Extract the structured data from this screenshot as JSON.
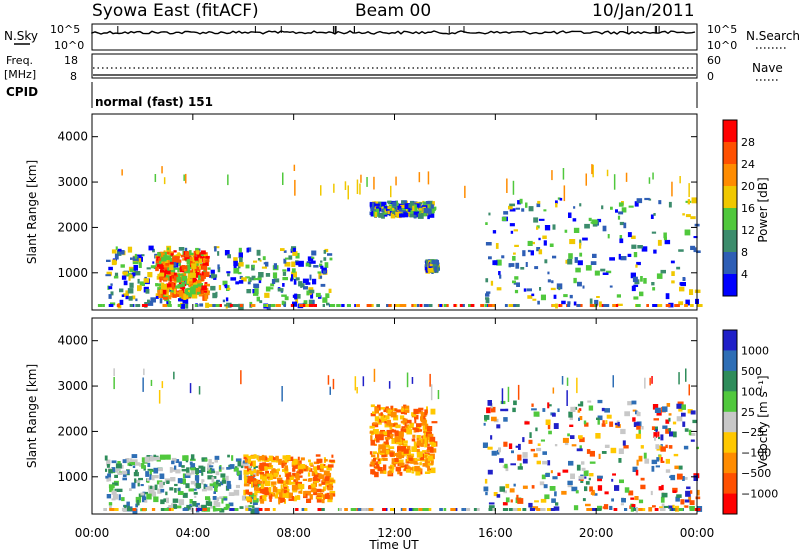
{
  "header": {
    "station": "Syowa East (fitACF)",
    "beam": "Beam 00",
    "date": "10/Jan/2011"
  },
  "noise_panel": {
    "left_label": "N.Sky",
    "right_label": "N.Search",
    "left_ticks": [
      "10^5",
      "10^0"
    ],
    "right_ticks": [
      "10^5",
      "10^0"
    ]
  },
  "freq_panel": {
    "left_label_1": "Freq.",
    "left_label_2": "[MHz]",
    "right_label": "Nave",
    "left_ticks": [
      "18",
      "8"
    ],
    "right_ticks": [
      "60",
      "0"
    ]
  },
  "cpid": {
    "label": "CPID",
    "value": "normal (fast) 151"
  },
  "time_axis": {
    "label": "Time UT",
    "ticks": [
      "00:00",
      "04:00",
      "08:00",
      "12:00",
      "16:00",
      "20:00",
      "00:00"
    ]
  },
  "range_axis": {
    "label": "Slant Range [km]",
    "ticks": [
      "1000",
      "2000",
      "3000",
      "4000"
    ],
    "range_km": [
      180,
      4500
    ]
  },
  "chart_data": [
    {
      "type": "heatmap",
      "title": "",
      "xlabel": "Time UT",
      "ylabel": "Slant Range [km]",
      "xlim": [
        "00:00",
        "24:00"
      ],
      "ylim": [
        180,
        4500
      ],
      "colorbar": {
        "label": "Power [dB]",
        "ticks": [
          "4",
          "8",
          "12",
          "16",
          "20",
          "24",
          "28"
        ],
        "range": [
          0,
          30
        ],
        "colors": [
          "#0000ff",
          "#2e5eb5",
          "#3c8c6c",
          "#50c83c",
          "#f0c800",
          "#ff8c00",
          "#ff5000",
          "#ff0000"
        ]
      },
      "echo_regions": [
        {
          "t_start_h": 0.5,
          "t_end_h": 9.5,
          "range_start_km": 300,
          "range_end_km": 1600,
          "level": "mixed"
        },
        {
          "t_start_h": 2.5,
          "t_end_h": 4.5,
          "range_start_km": 500,
          "range_end_km": 1500,
          "level": "high"
        },
        {
          "t_start_h": 11.0,
          "t_end_h": 13.5,
          "range_start_km": 2300,
          "range_end_km": 2600,
          "level": "low"
        },
        {
          "t_start_h": 13.2,
          "t_end_h": 13.6,
          "range_start_km": 1100,
          "range_end_km": 1300,
          "level": "low"
        },
        {
          "t_start_h": 15.5,
          "t_end_h": 24.0,
          "range_start_km": 300,
          "range_end_km": 2700,
          "level": "low"
        },
        {
          "t_start_h": 0.0,
          "t_end_h": 24.0,
          "range_start_km": 2900,
          "range_end_km": 3400,
          "level": "sparse"
        }
      ]
    },
    {
      "type": "heatmap",
      "title": "",
      "xlabel": "Time UT",
      "ylabel": "Slant Range [km]",
      "xlim": [
        "00:00",
        "24:00"
      ],
      "ylim": [
        180,
        4500
      ],
      "colorbar": {
        "label": "Velocity [m s⁻¹]",
        "ticks": [
          "1000",
          "500",
          "100",
          "25",
          "−25",
          "−100",
          "−500",
          "−1000"
        ],
        "range": [
          -1200,
          1200
        ],
        "colors": [
          "#2020c8",
          "#2e6eb5",
          "#2e8c5a",
          "#50c83c",
          "#c8c8c8",
          "#ffc800",
          "#ff8c00",
          "#ff5000",
          "#ff0000"
        ]
      },
      "echo_regions": [
        {
          "t_start_h": 0.5,
          "t_end_h": 6.5,
          "range_start_km": 300,
          "range_end_km": 1500,
          "level": "towards"
        },
        {
          "t_start_h": 6.0,
          "t_end_h": 9.5,
          "range_start_km": 500,
          "range_end_km": 1500,
          "level": "away"
        },
        {
          "t_start_h": 11.0,
          "t_end_h": 13.5,
          "range_start_km": 1100,
          "range_end_km": 2600,
          "level": "away"
        },
        {
          "t_start_h": 15.5,
          "t_end_h": 24.0,
          "range_start_km": 300,
          "range_end_km": 2700,
          "level": "mixed"
        },
        {
          "t_start_h": 0.0,
          "t_end_h": 24.0,
          "range_start_km": 2900,
          "range_end_km": 3400,
          "level": "sparse"
        }
      ]
    }
  ]
}
